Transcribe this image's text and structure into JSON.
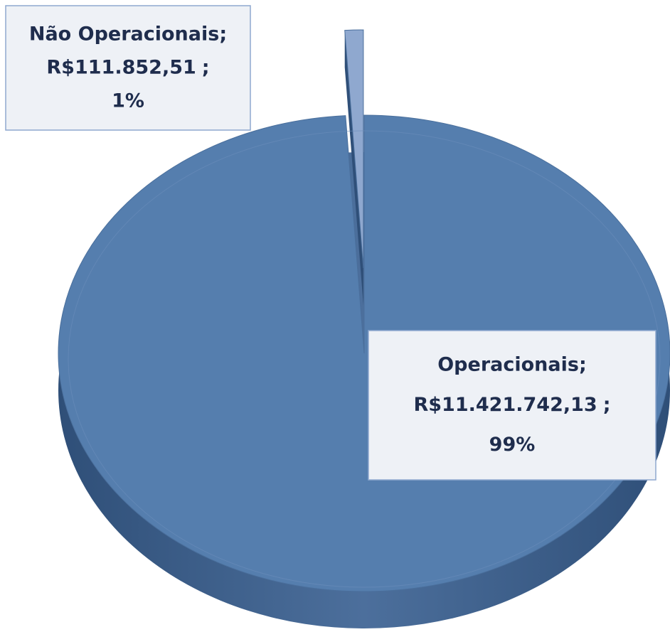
{
  "chart_data": {
    "type": "pie",
    "categories": [
      "Não Operacionais",
      "Operacionais"
    ],
    "values": [
      111852.51,
      11421742.13
    ],
    "value_labels": [
      "R$111.852,51",
      "R$11.421.742,13"
    ],
    "percents": [
      1,
      99
    ],
    "percent_labels": [
      "1%",
      "99%"
    ],
    "separator": ";",
    "colors": [
      "#8fa8cf",
      "#557eae"
    ],
    "exploded": [
      true,
      false
    ]
  }
}
